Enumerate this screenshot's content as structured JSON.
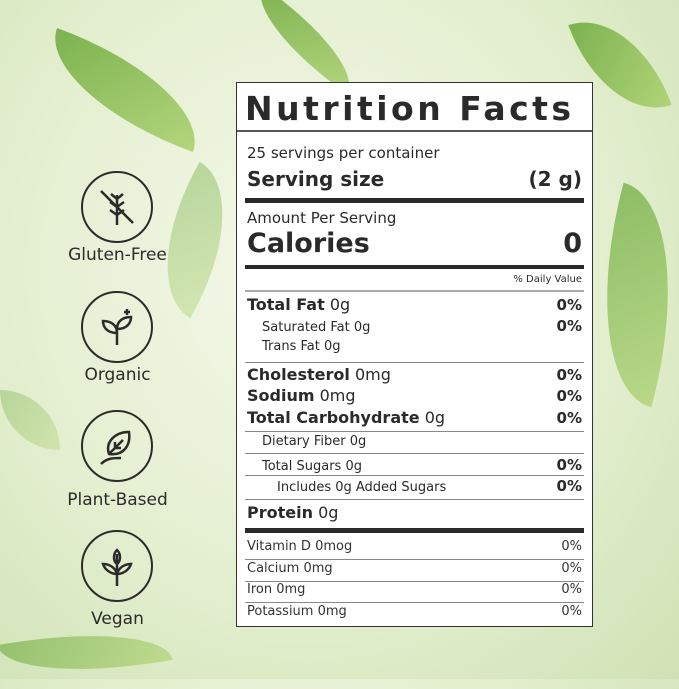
{
  "badges": [
    {
      "label": "Gluten-Free",
      "icon": "wheat-crossed-icon"
    },
    {
      "label": "Organic",
      "icon": "sprout-sparkle-icon"
    },
    {
      "label": "Plant-Based",
      "icon": "leaf-in-hand-icon"
    },
    {
      "label": "Vegan",
      "icon": "plant-icon"
    }
  ],
  "label": {
    "title": "Nutrition Facts",
    "servings": "25 servings per container",
    "serving_size_label": "Serving size",
    "serving_size_value": "(2 g)",
    "amount_per_serving": "Amount Per Serving",
    "calories_label": "Calories",
    "calories_value": "0",
    "daily_value_header": "% Daily Value",
    "nutrients": [
      {
        "name": "Total Fat",
        "amount": "0g",
        "dv": "0%"
      },
      {
        "name": "Saturated Fat",
        "amount": "0g",
        "dv": "0%"
      },
      {
        "name": "Trans Fat",
        "amount": "0g",
        "dv": ""
      },
      {
        "name": "Cholesterol",
        "amount": "0mg",
        "dv": "0%"
      },
      {
        "name": "Sodium",
        "amount": "0mg",
        "dv": "0%"
      },
      {
        "name": "Total Carbohydrate",
        "amount": "0g",
        "dv": "0%"
      },
      {
        "name": "Dietary Fiber",
        "amount": "0g",
        "dv": ""
      },
      {
        "name": "Total Sugars",
        "amount": "0g",
        "dv": "0%"
      },
      {
        "name": "Includes 0g Added Sugars",
        "amount": "",
        "dv": "0%"
      },
      {
        "name": "Protein",
        "amount": "0g",
        "dv": ""
      }
    ],
    "vitamins": [
      {
        "text": "Vitamin D 0mog",
        "dv": "0%"
      },
      {
        "text": "Calcium 0mg",
        "dv": "0%"
      },
      {
        "text": "Iron 0mg",
        "dv": "0%"
      },
      {
        "text": "Potassium 0mg",
        "dv": "0%"
      }
    ]
  }
}
